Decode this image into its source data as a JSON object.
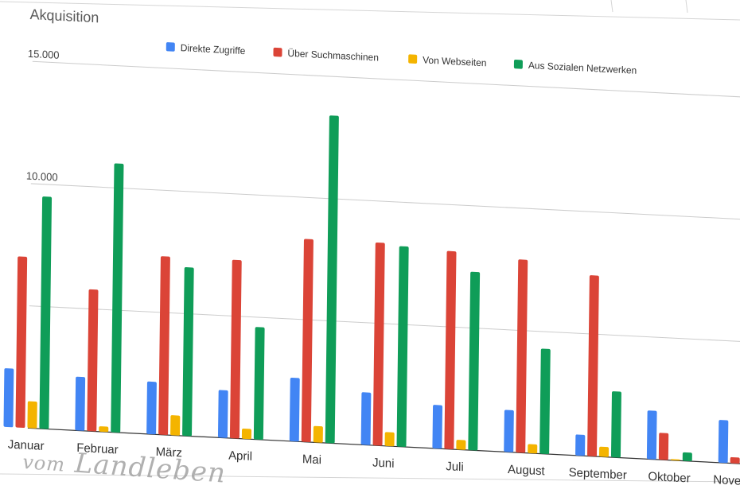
{
  "chart_data": {
    "type": "bar",
    "title": "Akquisition",
    "categories": [
      "Januar",
      "Februar",
      "März",
      "April",
      "Mai",
      "Juni",
      "Juli",
      "August",
      "September",
      "Oktober",
      "November"
    ],
    "y_tick_labels": [
      "15.000",
      "10.000"
    ],
    "ylim": [
      0,
      15000
    ],
    "grid": true,
    "legend_position": "top",
    "series": [
      {
        "name": "Direkte Zugriffe",
        "color": "#4285f4",
        "values": [
          2400,
          2200,
          2150,
          1950,
          2600,
          2150,
          1780,
          1720,
          860,
          1990,
          1750
        ]
      },
      {
        "name": "Über Suchmaschinen",
        "color": "#db4437",
        "values": [
          7000,
          5800,
          7300,
          7300,
          8300,
          8300,
          8100,
          7900,
          7400,
          1100,
          250
        ]
      },
      {
        "name": "Von Webseiten",
        "color": "#f4b400",
        "values": [
          1100,
          220,
          820,
          420,
          670,
          570,
          400,
          370,
          410,
          50,
          0
        ]
      },
      {
        "name": "Aus Sozialen Netzwerken",
        "color": "#0f9d58",
        "values": [
          9500,
          11000,
          6900,
          4600,
          13400,
          8200,
          7300,
          4300,
          2700,
          350,
          0
        ]
      }
    ]
  },
  "watermark": {
    "text_left": "vom",
    "text_right": "Landleben"
  }
}
